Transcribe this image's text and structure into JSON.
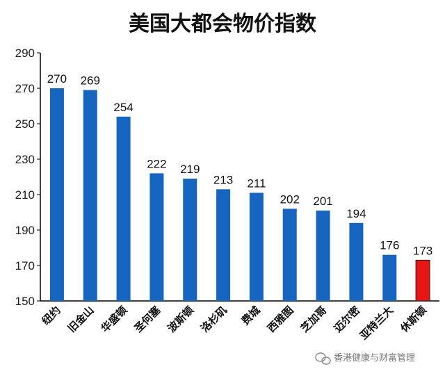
{
  "chart_data": {
    "type": "bar",
    "title": "美国大都会物价指数",
    "xlabel": "",
    "ylabel": "",
    "ylim": [
      150,
      290
    ],
    "yticks": [
      150,
      170,
      190,
      210,
      230,
      250,
      270,
      290
    ],
    "grid": false,
    "categories": [
      "纽约",
      "旧金山",
      "华盛顿",
      "圣何塞",
      "波斯顿",
      "洛杉矶",
      "费城",
      "西雅图",
      "芝加哥",
      "迈尔密",
      "亚特兰大",
      "休斯顿"
    ],
    "values": [
      270,
      269,
      254,
      222,
      219,
      213,
      211,
      202,
      201,
      194,
      176,
      173
    ],
    "colors": {
      "default": "#1565C0",
      "highlight": "#E81515",
      "highlight_category": "休斯顿"
    }
  },
  "watermark": {
    "text": "香港健康与财富管理",
    "icon": "wechat-icon"
  }
}
